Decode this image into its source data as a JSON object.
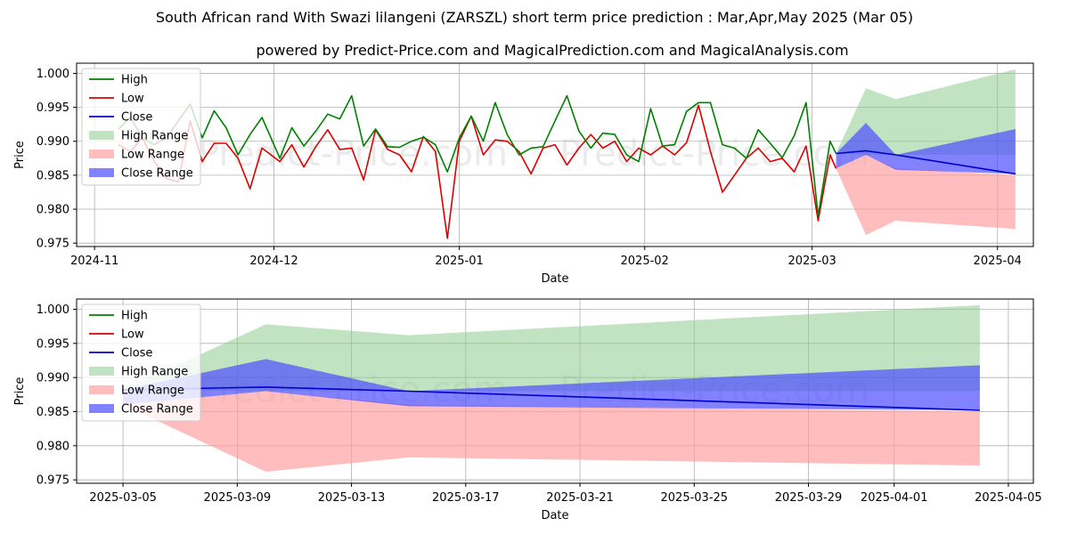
{
  "title": "South African rand With Swazi lilangeni (ZARSZL) short term price prediction : Mar,Apr,May 2025 (Mar 05)",
  "subtitle": "powered by Predict-Price.com and MagicalPrediction.com and MagicalAnalysis.com",
  "watermark": "Predict-Price.com",
  "colors": {
    "high": "#008000",
    "low": "#dd0000",
    "close": "#0000cc",
    "high_range": "#8fcc8f",
    "low_range": "#ff9999",
    "close_range": "#4d4dff"
  },
  "chart_data": [
    {
      "type": "line",
      "name": "top-history-chart",
      "xlabel": "Date",
      "ylabel": "Price",
      "xlim": [
        "2024-10-29",
        "2025-04-07"
      ],
      "ylim": [
        0.9745,
        1.0015
      ],
      "yticks": [
        0.975,
        0.98,
        0.985,
        0.99,
        0.995,
        1.0
      ],
      "ytick_labels": [
        "0.975",
        "0.980",
        "0.985",
        "0.990",
        "0.995",
        "1.000"
      ],
      "xticks": [
        "2024-11-01",
        "2024-12-01",
        "2025-01-01",
        "2025-02-01",
        "2025-03-01",
        "2025-04-01"
      ],
      "xtick_labels": [
        "2024-11",
        "2024-12",
        "2025-01",
        "2025-02",
        "2025-03",
        "2025-04"
      ],
      "grid": true,
      "legend": [
        "High",
        "Low",
        "Close",
        "High Range",
        "Low Range",
        "Close Range"
      ],
      "legend_position": "top-left",
      "series": [
        {
          "name": "High",
          "x": [
            "2024-11-05",
            "2024-11-07",
            "2024-11-09",
            "2024-11-11",
            "2024-11-13",
            "2024-11-15",
            "2024-11-17",
            "2024-11-19",
            "2024-11-21",
            "2024-11-23",
            "2024-11-25",
            "2024-11-27",
            "2024-11-29",
            "2024-12-02",
            "2024-12-04",
            "2024-12-06",
            "2024-12-08",
            "2024-12-10",
            "2024-12-12",
            "2024-12-14",
            "2024-12-16",
            "2024-12-18",
            "2024-12-20",
            "2024-12-22",
            "2024-12-24",
            "2024-12-26",
            "2024-12-28",
            "2024-12-30",
            "2025-01-01",
            "2025-01-03",
            "2025-01-05",
            "2025-01-07",
            "2025-01-09",
            "2025-01-11",
            "2025-01-13",
            "2025-01-15",
            "2025-01-17",
            "2025-01-19",
            "2025-01-21",
            "2025-01-23",
            "2025-01-25",
            "2025-01-27",
            "2025-01-29",
            "2025-01-31",
            "2025-02-02",
            "2025-02-04",
            "2025-02-06",
            "2025-02-08",
            "2025-02-10",
            "2025-02-12",
            "2025-02-14",
            "2025-02-16",
            "2025-02-18",
            "2025-02-20",
            "2025-02-22",
            "2025-02-24",
            "2025-02-26",
            "2025-02-28",
            "2025-03-02",
            "2025-03-04",
            "2025-03-05"
          ],
          "values": [
            0.9918,
            0.9935,
            0.9905,
            0.9895,
            0.9905,
            0.993,
            0.9955,
            0.9905,
            0.9945,
            0.992,
            0.988,
            0.991,
            0.9935,
            0.9875,
            0.992,
            0.9893,
            0.9915,
            0.994,
            0.9933,
            0.9967,
            0.9893,
            0.9918,
            0.9892,
            0.9891,
            0.99,
            0.9906,
            0.9895,
            0.9855,
            0.9905,
            0.9937,
            0.99,
            0.9957,
            0.991,
            0.988,
            0.989,
            0.9892,
            0.993,
            0.9967,
            0.9915,
            0.989,
            0.9912,
            0.991,
            0.988,
            0.987,
            0.9948,
            0.9893,
            0.9895,
            0.9944,
            0.9957,
            0.9957,
            0.9895,
            0.989,
            0.9875,
            0.9917,
            0.9897,
            0.9876,
            0.9908,
            0.9957,
            0.979,
            0.99,
            0.9882
          ]
        },
        {
          "name": "Low",
          "x": [
            "2024-11-05",
            "2024-11-07",
            "2024-11-09",
            "2024-11-11",
            "2024-11-13",
            "2024-11-15",
            "2024-11-17",
            "2024-11-19",
            "2024-11-21",
            "2024-11-23",
            "2024-11-25",
            "2024-11-27",
            "2024-11-29",
            "2024-12-02",
            "2024-12-04",
            "2024-12-06",
            "2024-12-08",
            "2024-12-10",
            "2024-12-12",
            "2024-12-14",
            "2024-12-16",
            "2024-12-18",
            "2024-12-20",
            "2024-12-22",
            "2024-12-24",
            "2024-12-26",
            "2024-12-28",
            "2024-12-30",
            "2025-01-01",
            "2025-01-03",
            "2025-01-05",
            "2025-01-07",
            "2025-01-09",
            "2025-01-11",
            "2025-01-13",
            "2025-01-15",
            "2025-01-17",
            "2025-01-19",
            "2025-01-21",
            "2025-01-23",
            "2025-01-25",
            "2025-01-27",
            "2025-01-29",
            "2025-01-31",
            "2025-02-02",
            "2025-02-04",
            "2025-02-06",
            "2025-02-08",
            "2025-02-10",
            "2025-02-12",
            "2025-02-14",
            "2025-02-16",
            "2025-02-18",
            "2025-02-20",
            "2025-02-22",
            "2025-02-24",
            "2025-02-26",
            "2025-02-28",
            "2025-03-02",
            "2025-03-04",
            "2025-03-05"
          ],
          "values": [
            0.9895,
            0.9885,
            0.9905,
            0.987,
            0.9845,
            0.984,
            0.993,
            0.987,
            0.9897,
            0.9897,
            0.9875,
            0.983,
            0.989,
            0.987,
            0.9895,
            0.9862,
            0.9892,
            0.9917,
            0.9888,
            0.989,
            0.9843,
            0.9917,
            0.9888,
            0.988,
            0.9855,
            0.9907,
            0.9885,
            0.9757,
            0.99,
            0.9937,
            0.988,
            0.9902,
            0.99,
            0.9885,
            0.9852,
            0.989,
            0.9895,
            0.9865,
            0.989,
            0.991,
            0.989,
            0.99,
            0.987,
            0.989,
            0.988,
            0.9893,
            0.988,
            0.9898,
            0.9953,
            0.9885,
            0.9825,
            0.985,
            0.9875,
            0.989,
            0.987,
            0.9875,
            0.9855,
            0.9893,
            0.9783,
            0.988,
            0.986
          ]
        },
        {
          "name": "Close",
          "x": [
            "2025-03-05",
            "2025-03-10",
            "2025-03-15",
            "2025-04-04"
          ],
          "values": [
            0.9882,
            0.9886,
            0.988,
            0.9852
          ]
        },
        {
          "name": "High Range",
          "x": [
            "2025-03-05",
            "2025-03-10",
            "2025-03-15",
            "2025-04-04"
          ],
          "upper": [
            0.9882,
            0.9978,
            0.9962,
            1.0006
          ],
          "lower": [
            0.9882,
            0.988,
            0.988,
            0.988
          ]
        },
        {
          "name": "Low Range",
          "x": [
            "2025-03-05",
            "2025-03-10",
            "2025-03-15",
            "2025-04-04"
          ],
          "upper": [
            0.986,
            0.988,
            0.986,
            0.985
          ],
          "lower": [
            0.986,
            0.9762,
            0.9783,
            0.9771
          ]
        },
        {
          "name": "Close Range",
          "x": [
            "2025-03-05",
            "2025-03-10",
            "2025-03-15",
            "2025-04-04"
          ],
          "upper": [
            0.9882,
            0.9927,
            0.988,
            0.9918
          ],
          "lower": [
            0.986,
            0.988,
            0.9858,
            0.9852
          ]
        }
      ]
    },
    {
      "type": "line",
      "name": "bottom-forecast-chart",
      "xlabel": "Date",
      "ylabel": "Price",
      "xlim": [
        "2025-03-03T09:00",
        "2025-04-05T21:00"
      ],
      "ylim": [
        0.9745,
        1.0015
      ],
      "yticks": [
        0.975,
        0.98,
        0.985,
        0.99,
        0.995,
        1.0
      ],
      "ytick_labels": [
        "0.975",
        "0.980",
        "0.985",
        "0.990",
        "0.995",
        "1.000"
      ],
      "xticks": [
        "2025-03-05",
        "2025-03-09",
        "2025-03-13",
        "2025-03-17",
        "2025-03-21",
        "2025-03-25",
        "2025-03-29",
        "2025-04-01",
        "2025-04-05"
      ],
      "xtick_labels": [
        "2025-03-05",
        "2025-03-09",
        "2025-03-13",
        "2025-03-17",
        "2025-03-21",
        "2025-03-25",
        "2025-03-29",
        "2025-04-01",
        "2025-04-05"
      ],
      "grid": true,
      "legend": [
        "High",
        "Low",
        "Close",
        "High Range",
        "Low Range",
        "Close Range"
      ],
      "legend_position": "top-left",
      "series": [
        {
          "name": "Close",
          "x": [
            "2025-03-05",
            "2025-03-10",
            "2025-03-15",
            "2025-04-04"
          ],
          "values": [
            0.9882,
            0.9886,
            0.988,
            0.9852
          ]
        },
        {
          "name": "High Range",
          "x": [
            "2025-03-05",
            "2025-03-10",
            "2025-03-15",
            "2025-04-04"
          ],
          "upper": [
            0.9882,
            0.9978,
            0.9962,
            1.0006
          ],
          "lower": [
            0.9882,
            0.988,
            0.988,
            0.988
          ]
        },
        {
          "name": "Low Range",
          "x": [
            "2025-03-05",
            "2025-03-10",
            "2025-03-15",
            "2025-04-04"
          ],
          "upper": [
            0.986,
            0.988,
            0.986,
            0.985
          ],
          "lower": [
            0.986,
            0.9762,
            0.9783,
            0.9771
          ]
        },
        {
          "name": "Close Range",
          "x": [
            "2025-03-05",
            "2025-03-10",
            "2025-03-15",
            "2025-04-04"
          ],
          "upper": [
            0.9882,
            0.9927,
            0.988,
            0.9918
          ],
          "lower": [
            0.986,
            0.988,
            0.9858,
            0.9852
          ]
        }
      ]
    }
  ]
}
